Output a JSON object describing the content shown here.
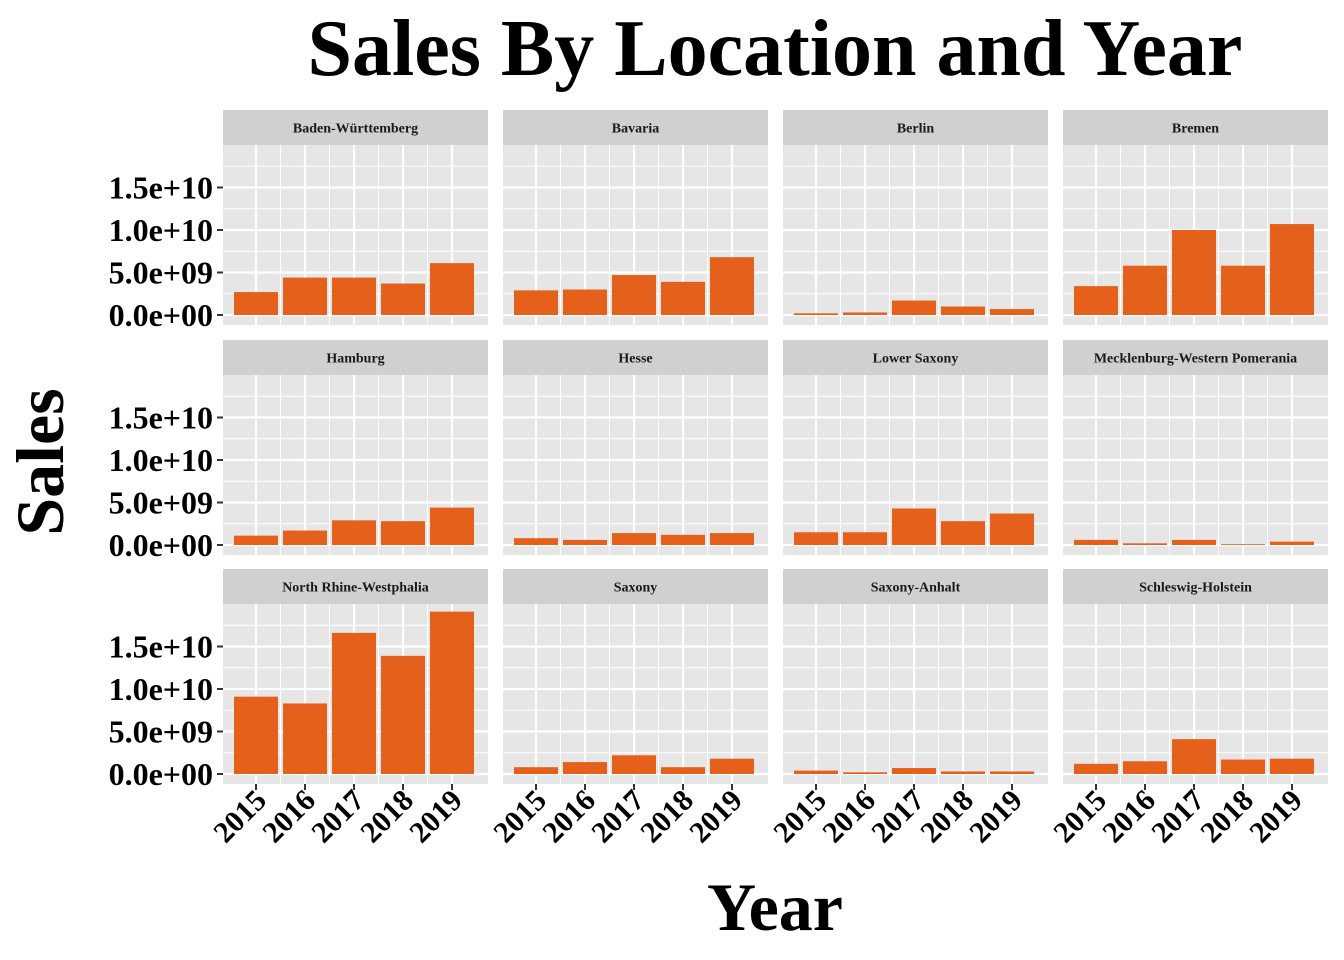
{
  "chart_data": {
    "type": "bar",
    "title": "Sales By Location and Year",
    "xlabel": "Year",
    "ylabel": "Sales",
    "categories": [
      "2015",
      "2016",
      "2017",
      "2018",
      "2019"
    ],
    "y_ticks": [
      "0.0e+00",
      "5.0e+09",
      "1.0e+10",
      "1.5e+10"
    ],
    "ylim": [
      0,
      20000000000
    ],
    "grid": true,
    "colors": {
      "bar": "#E5601B",
      "panel": "#E6E6E6",
      "strip": "#D0D0D0",
      "grid": "#FFFFFF"
    },
    "panels": [
      {
        "name": "Baden-Württemberg",
        "values": [
          2700000000,
          4400000000,
          4400000000,
          3700000000,
          6100000000
        ]
      },
      {
        "name": "Bavaria",
        "values": [
          2900000000,
          3000000000,
          4700000000,
          3900000000,
          6800000000
        ]
      },
      {
        "name": "Berlin",
        "values": [
          200000000,
          300000000,
          1700000000,
          1000000000,
          700000000
        ]
      },
      {
        "name": "Bremen",
        "values": [
          3400000000,
          5800000000,
          10000000000,
          5800000000,
          10700000000
        ]
      },
      {
        "name": "Hamburg",
        "values": [
          1100000000,
          1700000000,
          2900000000,
          2800000000,
          4400000000
        ]
      },
      {
        "name": "Hesse",
        "values": [
          800000000,
          600000000,
          1400000000,
          1200000000,
          1400000000
        ]
      },
      {
        "name": "Lower Saxony",
        "values": [
          1500000000,
          1500000000,
          4300000000,
          2800000000,
          3700000000
        ]
      },
      {
        "name": "Mecklenburg-Western Pomerania",
        "values": [
          600000000,
          200000000,
          600000000,
          100000000,
          400000000
        ]
      },
      {
        "name": "North Rhine-Westphalia",
        "values": [
          9100000000,
          8300000000,
          16600000000,
          13900000000,
          19100000000
        ]
      },
      {
        "name": "Saxony",
        "values": [
          800000000,
          1400000000,
          2200000000,
          800000000,
          1800000000
        ]
      },
      {
        "name": "Saxony-Anhalt",
        "values": [
          400000000,
          200000000,
          700000000,
          300000000,
          300000000
        ]
      },
      {
        "name": "Schleswig-Holstein",
        "values": [
          1200000000,
          1500000000,
          4100000000,
          1700000000,
          1800000000
        ]
      }
    ]
  }
}
